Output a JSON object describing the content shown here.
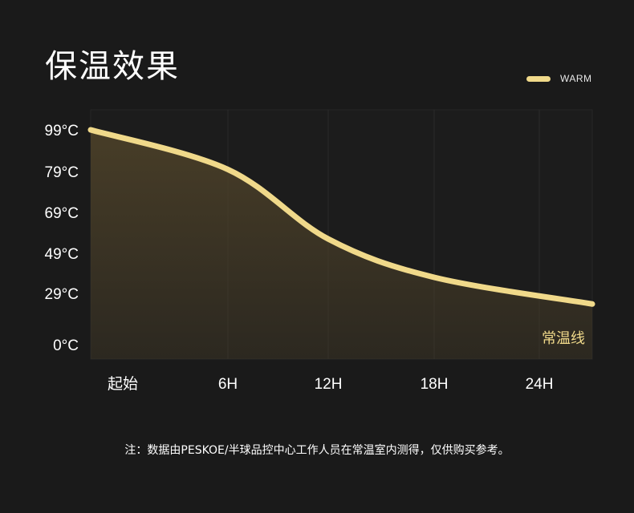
{
  "title": "保温效果",
  "legend": {
    "label": "WARM",
    "color": "#f0d98a"
  },
  "footnote": "注：数据由PESKOE/半球品控中心工作人员在常温室内测得，仅供购买参考。",
  "colors": {
    "background": "#1a1a1a",
    "plot_background": "#1c1c1c",
    "line": "#f0d98a",
    "fill_top": "#4a3f28",
    "annotation": "#f0d98a",
    "grid": "#2a2a2a"
  },
  "chart_data": {
    "type": "area",
    "categories": [
      "起始",
      "6H",
      "12H",
      "18H",
      "24H"
    ],
    "y_ticks": [
      "99°C",
      "79°C",
      "69°C",
      "49°C",
      "29°C",
      "0°C"
    ],
    "series": [
      {
        "name": "WARM",
        "values": [
          99,
          80,
          56,
          37,
          23
        ]
      }
    ],
    "annotation": "常温线",
    "legend_position": "top-right",
    "grid": true
  }
}
